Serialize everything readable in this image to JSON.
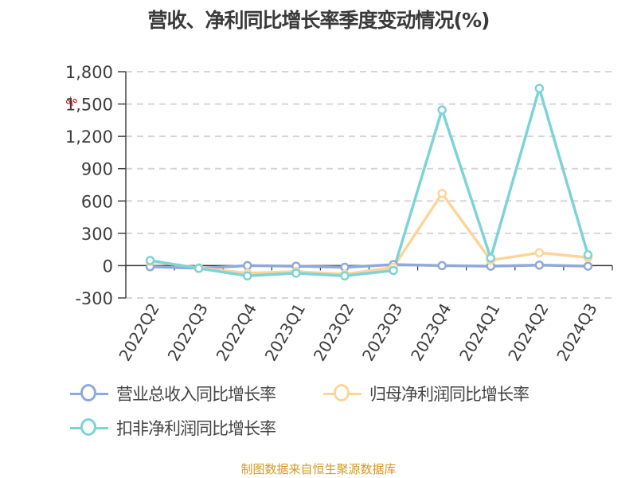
{
  "header": {
    "title": "营收、净利同比增长率季度变动情况(%)"
  },
  "axis": {
    "unit_label": "%"
  },
  "legend": {
    "items": [
      {
        "label": "营业总收入同比增长率",
        "color": "#8fa9d9"
      },
      {
        "label": "归母净利润同比增长率",
        "color": "#fcd59a"
      },
      {
        "label": "扣非净利润同比增长率",
        "color": "#7dd3d6"
      }
    ]
  },
  "footer": {
    "source": "制图数据来自恒生聚源数据库"
  },
  "chart_data": {
    "type": "line",
    "title": "营收、净利同比增长率季度变动情况(%)",
    "xlabel": "",
    "ylabel": "%",
    "ylim": [
      -300,
      1800
    ],
    "yticks": [
      -300,
      0,
      300,
      600,
      900,
      1200,
      1500,
      1800
    ],
    "ytick_labels": [
      "-300",
      "0",
      "300",
      "600",
      "900",
      "1,200",
      "1,500",
      "1,800"
    ],
    "grid": true,
    "legend_position": "bottom",
    "categories": [
      "2022Q2",
      "2022Q3",
      "2022Q4",
      "2023Q1",
      "2023Q2",
      "2023Q3",
      "2023Q4",
      "2024Q1",
      "2024Q2",
      "2024Q3"
    ],
    "series": [
      {
        "name": "营业总收入同比增长率",
        "color": "#8fa9d9",
        "values": [
          -10,
          -25,
          0,
          -5,
          -15,
          10,
          0,
          -5,
          5,
          -5
        ]
      },
      {
        "name": "归母净利润同比增长率",
        "color": "#fcd59a",
        "values": [
          40,
          -20,
          -70,
          -55,
          -80,
          -15,
          670,
          50,
          120,
          75
        ]
      },
      {
        "name": "扣非净利润同比增长率",
        "color": "#7dd3d6",
        "values": [
          48,
          -25,
          -95,
          -70,
          -95,
          -45,
          1445,
          70,
          1645,
          100
        ]
      }
    ]
  }
}
